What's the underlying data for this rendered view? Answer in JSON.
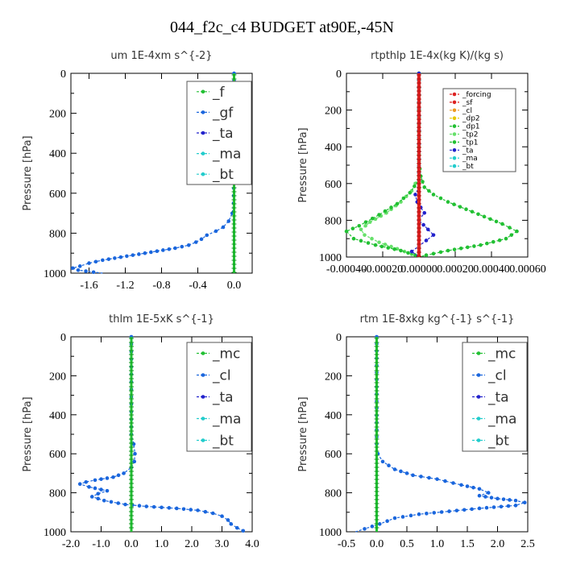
{
  "figure": {
    "title": "044_f2c_c4  BUDGET at90E,-45N"
  },
  "colors": {
    "green": "#22c033",
    "blue": "#1a66dd",
    "navy": "#2222cc",
    "cyan": "#22cccc",
    "red": "#dd2222",
    "orange": "#ee9922",
    "yellow": "#e8c800",
    "lightgreen": "#66e06a"
  },
  "chart_data": [
    {
      "type": "line",
      "title": "um   1E-4xm  s^{-2}",
      "ylabel": "Pressure [hPa]",
      "xlim": [
        -1.8,
        0.2
      ],
      "ylim": [
        1000,
        0
      ],
      "xticks": [
        -1.6,
        -1.2,
        -0.8,
        -0.4,
        0.0
      ],
      "xtick_labels": [
        "-1.6",
        "-1.2",
        "-0.8",
        "-0.4",
        "0.0"
      ],
      "yticks": [
        0,
        200,
        400,
        600,
        800,
        1000
      ],
      "ytick_labels": [
        "0",
        "200",
        "400",
        "600",
        "800",
        "1000"
      ],
      "legend_position": "top-right",
      "series": [
        {
          "name": "_f",
          "color": "green",
          "points": [
            [
              0,
              0
            ],
            [
              0,
              1000
            ]
          ]
        },
        {
          "name": "_gf",
          "color": "blue",
          "points": [
            [
              0,
              0
            ],
            [
              0,
              500
            ],
            [
              -0.005,
              650
            ],
            [
              -0.02,
              700
            ],
            [
              -0.06,
              740
            ],
            [
              -0.12,
              770
            ],
            [
              -0.2,
              790
            ],
            [
              -0.3,
              810
            ],
            [
              -0.36,
              830
            ],
            [
              -0.42,
              845
            ],
            [
              -0.5,
              860
            ],
            [
              -0.65,
              875
            ],
            [
              -0.85,
              890
            ],
            [
              -1.05,
              905
            ],
            [
              -1.25,
              920
            ],
            [
              -1.45,
              935
            ],
            [
              -1.6,
              950
            ],
            [
              -1.7,
              965
            ],
            [
              -1.78,
              975
            ],
            [
              -1.72,
              985
            ],
            [
              -1.55,
              995
            ],
            [
              -1.45,
              1000
            ]
          ]
        },
        {
          "name": "_ta",
          "color": "navy",
          "points": [
            [
              0,
              0
            ],
            [
              0,
              1000
            ]
          ]
        },
        {
          "name": "_ma",
          "color": "cyan",
          "points": [
            [
              0,
              0
            ],
            [
              0,
              1000
            ]
          ]
        },
        {
          "name": "_bt",
          "color": "cyan",
          "points": [
            [
              0,
              0
            ],
            [
              0,
              1000
            ]
          ]
        }
      ]
    },
    {
      "type": "line",
      "title": "rtpthlp   1E-4x(kg K)/(kg s)",
      "ylabel": "Pressure [hPa]",
      "xlim": [
        -0.0004,
        0.0006
      ],
      "ylim": [
        1000,
        0
      ],
      "xticks": [
        -0.0004,
        -0.0002,
        0.0,
        0.0002,
        0.0004,
        0.0006
      ],
      "xtick_labels": [
        "-0.00040",
        "-0.00020",
        "0.00000",
        "0.00020",
        "0.00040",
        "0.00060"
      ],
      "yticks": [
        0,
        200,
        400,
        600,
        800,
        1000
      ],
      "ytick_labels": [
        "0",
        "200",
        "400",
        "600",
        "800",
        "1000"
      ],
      "legend_position": "top-right",
      "series": [
        {
          "name": "_forcing",
          "color": "red",
          "points": [
            [
              0,
              0
            ],
            [
              0,
              1000
            ]
          ]
        },
        {
          "name": "_sf",
          "color": "red",
          "points": [
            [
              0,
              0
            ],
            [
              0,
              1000
            ]
          ]
        },
        {
          "name": "_cl",
          "color": "orange",
          "points": [
            [
              0,
              0
            ],
            [
              0,
              1000
            ]
          ]
        },
        {
          "name": "_dp2",
          "color": "yellow",
          "points": [
            [
              0,
              0
            ],
            [
              0,
              1000
            ]
          ]
        },
        {
          "name": "_dp1",
          "color": "green",
          "points": [
            [
              0,
              0
            ],
            [
              0,
              480
            ],
            [
              1e-05,
              560
            ],
            [
              3e-05,
              620
            ],
            [
              8e-05,
              660
            ],
            [
              0.00016,
              700
            ],
            [
              0.00026,
              740
            ],
            [
              0.00036,
              780
            ],
            [
              0.00046,
              820
            ],
            [
              0.00054,
              860
            ],
            [
              0.00048,
              900
            ],
            [
              0.00034,
              935
            ],
            [
              0.00016,
              965
            ],
            [
              4e-05,
              990
            ],
            [
              0,
              1000
            ]
          ]
        },
        {
          "name": "_tp2",
          "color": "lightgreen",
          "points": [
            [
              0,
              0
            ],
            [
              0,
              560
            ],
            [
              -4e-05,
              640
            ],
            [
              -0.0001,
              700
            ],
            [
              -0.00018,
              760
            ],
            [
              -0.00027,
              810
            ],
            [
              -0.00032,
              850
            ],
            [
              -0.0003,
              880
            ],
            [
              -0.00022,
              920
            ],
            [
              -0.00012,
              955
            ],
            [
              -4e-05,
              985
            ],
            [
              0,
              1000
            ]
          ]
        },
        {
          "name": "_tp1",
          "color": "green",
          "points": [
            [
              0,
              0
            ],
            [
              0,
              580
            ],
            [
              -5e-05,
              650
            ],
            [
              -0.00012,
              710
            ],
            [
              -0.00022,
              770
            ],
            [
              -0.00033,
              830
            ],
            [
              -0.0004,
              860
            ],
            [
              -0.00036,
              900
            ],
            [
              -0.00024,
              935
            ],
            [
              -0.0001,
              965
            ],
            [
              -2e-05,
              990
            ],
            [
              0,
              1000
            ]
          ]
        },
        {
          "name": "_ta",
          "color": "navy",
          "points": [
            [
              0,
              0
            ],
            [
              0,
              620
            ],
            [
              -2e-05,
              660
            ],
            [
              -1e-05,
              700
            ],
            [
              3e-05,
              760
            ],
            [
              0,
              800
            ],
            [
              5e-05,
              850
            ],
            [
              8e-05,
              880
            ],
            [
              4e-05,
              910
            ],
            [
              0,
              940
            ],
            [
              -4e-05,
              970
            ],
            [
              0,
              1000
            ]
          ]
        },
        {
          "name": "_ma",
          "color": "cyan",
          "points": [
            [
              0,
              0
            ],
            [
              0,
              1000
            ]
          ]
        },
        {
          "name": "_bt",
          "color": "cyan",
          "points": [
            [
              0,
              0
            ],
            [
              0,
              1000
            ]
          ]
        }
      ]
    },
    {
      "type": "line",
      "title": "thlm   1E-5xK  s^{-1}",
      "ylabel": "Pressure [hPa]",
      "xlim": [
        -2.0,
        4.0
      ],
      "ylim": [
        1000,
        0
      ],
      "xticks": [
        -2.0,
        -1.0,
        0.0,
        1.0,
        2.0,
        3.0,
        4.0
      ],
      "xtick_labels": [
        "-2.0",
        "-1.0",
        "0.0",
        "1.0",
        "2.0",
        "3.0",
        "4.0"
      ],
      "yticks": [
        0,
        200,
        400,
        600,
        800,
        1000
      ],
      "ytick_labels": [
        "0",
        "200",
        "400",
        "600",
        "800",
        "1000"
      ],
      "legend_position": "top-right",
      "series": [
        {
          "name": "_mc",
          "color": "green",
          "points": [
            [
              0,
              0
            ],
            [
              0,
              1000
            ]
          ]
        },
        {
          "name": "_cl",
          "color": "blue",
          "points": [
            [
              0,
              0
            ],
            [
              0,
              500
            ],
            [
              0.08,
              550
            ],
            [
              0.12,
              600
            ],
            [
              0.1,
              640
            ],
            [
              0,
              670
            ],
            [
              -0.25,
              700
            ],
            [
              -0.6,
              720
            ],
            [
              -1.2,
              735
            ],
            [
              -1.5,
              745
            ],
            [
              -1.7,
              755
            ],
            [
              -1.4,
              770
            ],
            [
              -0.8,
              790
            ],
            [
              -1.1,
              805
            ],
            [
              -1.3,
              820
            ],
            [
              -0.9,
              840
            ],
            [
              -0.2,
              860
            ],
            [
              0.5,
              870
            ],
            [
              1.5,
              880
            ],
            [
              2.2,
              890
            ],
            [
              2.7,
              905
            ],
            [
              3.0,
              920
            ],
            [
              3.2,
              940
            ],
            [
              3.3,
              960
            ],
            [
              3.5,
              980
            ],
            [
              3.7,
              995
            ],
            [
              3.65,
              1000
            ]
          ]
        },
        {
          "name": "_ta",
          "color": "navy",
          "points": [
            [
              0,
              0
            ],
            [
              0,
              1000
            ]
          ]
        },
        {
          "name": "_ma",
          "color": "cyan",
          "points": [
            [
              0,
              0
            ],
            [
              0,
              1000
            ]
          ]
        },
        {
          "name": "_bt",
          "color": "cyan",
          "points": [
            [
              0,
              0
            ],
            [
              0,
              1000
            ]
          ]
        }
      ]
    },
    {
      "type": "line",
      "title": "rtm   1E-8xkg  kg^{-1} s^{-1}",
      "ylabel": "Pressure [hPa]",
      "xlim": [
        -0.5,
        2.5
      ],
      "ylim": [
        1000,
        0
      ],
      "xticks": [
        -0.5,
        0.0,
        0.5,
        1.0,
        1.5,
        2.0,
        2.5
      ],
      "xtick_labels": [
        "-0.5",
        "0.0",
        "0.5",
        "1.0",
        "1.5",
        "2.0",
        "2.5"
      ],
      "yticks": [
        0,
        200,
        400,
        600,
        800,
        1000
      ],
      "ytick_labels": [
        "0",
        "200",
        "400",
        "600",
        "800",
        "1000"
      ],
      "legend_position": "top-right",
      "series": [
        {
          "name": "_mc",
          "color": "green",
          "points": [
            [
              0,
              0
            ],
            [
              0,
              1000
            ]
          ]
        },
        {
          "name": "_cl",
          "color": "blue",
          "points": [
            [
              0,
              0
            ],
            [
              0,
              550
            ],
            [
              0.02,
              600
            ],
            [
              0.1,
              640
            ],
            [
              0.3,
              680
            ],
            [
              0.6,
              710
            ],
            [
              1.0,
              730
            ],
            [
              1.4,
              760
            ],
            [
              1.7,
              780
            ],
            [
              1.85,
              800
            ],
            [
              1.7,
              815
            ],
            [
              2.0,
              830
            ],
            [
              2.3,
              840
            ],
            [
              2.45,
              850
            ],
            [
              2.3,
              865
            ],
            [
              1.7,
              880
            ],
            [
              1.2,
              895
            ],
            [
              0.7,
              910
            ],
            [
              0.3,
              930
            ],
            [
              0.05,
              960
            ],
            [
              -0.2,
              985
            ],
            [
              -0.35,
              1000
            ]
          ]
        },
        {
          "name": "_ta",
          "color": "navy",
          "points": [
            [
              0,
              0
            ],
            [
              0,
              1000
            ]
          ]
        },
        {
          "name": "_ma",
          "color": "cyan",
          "points": [
            [
              0,
              0
            ],
            [
              0,
              1000
            ]
          ]
        },
        {
          "name": "_bt",
          "color": "cyan",
          "points": [
            [
              0,
              0
            ],
            [
              0,
              1000
            ]
          ]
        }
      ]
    }
  ]
}
